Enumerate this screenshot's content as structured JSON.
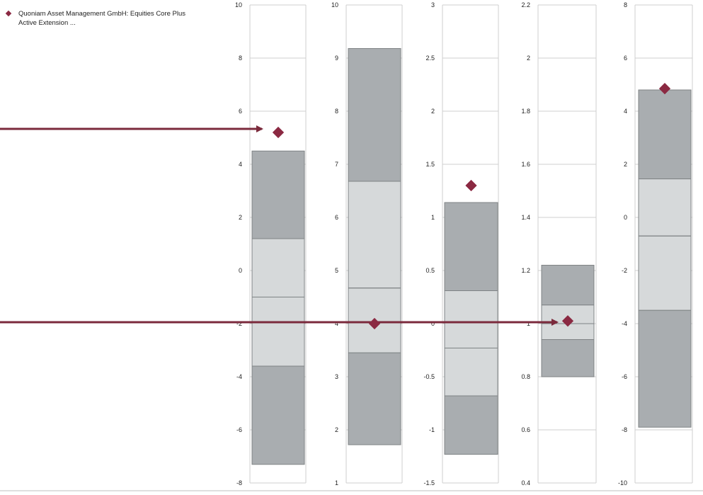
{
  "legend": {
    "label": "Quoniam Asset Management GmbH: Equities Core Plus Active Extension ...",
    "color": "#8b2942"
  },
  "colors": {
    "dark_box": "#a9adb0",
    "light_box": "#d6d9da",
    "box_stroke": "#7f8385",
    "grid": "#cfcfcf",
    "marker": "#8b2942",
    "arrow": "#7b2a3c"
  },
  "chart_data": [
    {
      "type": "box",
      "ylim": [
        -8,
        10
      ],
      "ticks": [
        "-8",
        "-6",
        "-4",
        "-2",
        "0",
        "2",
        "4",
        "6",
        "8",
        "10"
      ],
      "whisker_low": -7.3,
      "q1": -3.6,
      "median": -1.0,
      "q3": 1.2,
      "whisker_high": 4.5,
      "fund": 5.2
    },
    {
      "type": "box",
      "ylim": [
        1,
        10
      ],
      "ticks": [
        "1",
        "2",
        "3",
        "4",
        "5",
        "6",
        "7",
        "8",
        "9",
        "10"
      ],
      "whisker_low": 1.72,
      "q1": 3.45,
      "median": 4.67,
      "q3": 6.68,
      "whisker_high": 9.18,
      "fund": 4.0
    },
    {
      "type": "box",
      "ylim": [
        -1.5,
        3
      ],
      "ticks": [
        "-1.5",
        "-1",
        "-0.5",
        "0",
        "0.5",
        "1",
        "1.5",
        "2",
        "2.5",
        "3"
      ],
      "whisker_low": -1.23,
      "q1": -0.68,
      "median": -0.23,
      "q3": 0.31,
      "whisker_high": 1.14,
      "fund": 1.3
    },
    {
      "type": "box",
      "ylim": [
        0.4,
        2.2
      ],
      "ticks": [
        "0.4",
        "0.6",
        "0.8",
        "1",
        "1.2",
        "1.4",
        "1.6",
        "1.8",
        "2",
        "2.2"
      ],
      "whisker_low": 0.8,
      "q1": 0.94,
      "median": 1.0,
      "q3": 1.07,
      "whisker_high": 1.22,
      "fund": 1.01
    },
    {
      "type": "box",
      "ylim": [
        -10,
        8
      ],
      "ticks": [
        "-10",
        "-8",
        "-6",
        "-4",
        "-2",
        "0",
        "2",
        "4",
        "6",
        "8"
      ],
      "whisker_low": -7.9,
      "q1": -3.5,
      "median": -0.7,
      "q3": 1.45,
      "whisker_high": 4.8,
      "fund": 4.85
    }
  ]
}
